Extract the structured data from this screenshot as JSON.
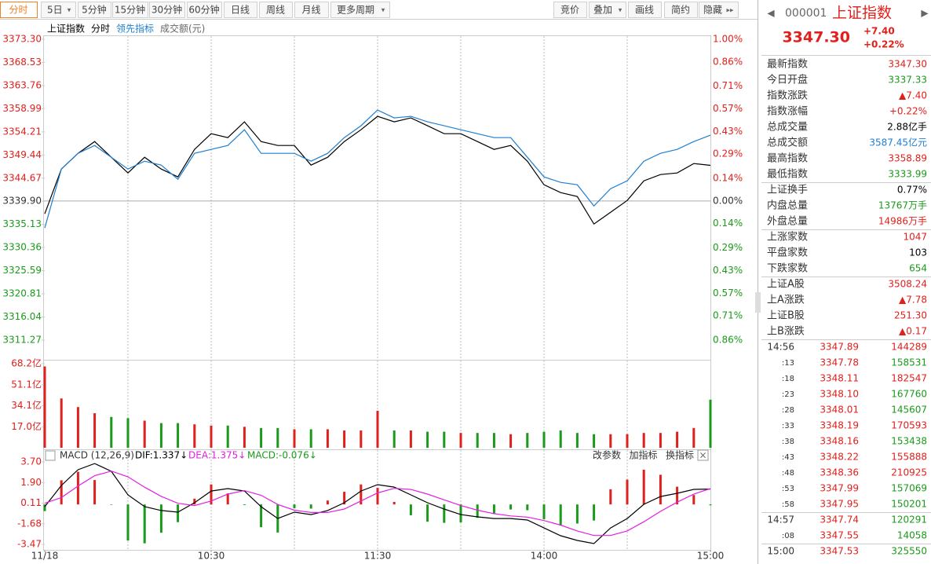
{
  "toolbar": {
    "left": [
      "分时",
      "5日",
      "5分钟",
      "15分钟",
      "30分钟",
      "60分钟",
      "日线",
      "周线",
      "月线",
      "更多周期"
    ],
    "right": [
      "竞价",
      "叠加",
      "画线",
      "简约",
      "隐藏"
    ]
  },
  "chart_data": [
    {
      "type": "line",
      "series_label": "分时",
      "volume_label": "成交额(元)",
      "x": [
        0,
        6,
        12,
        18,
        24,
        30,
        36,
        42,
        48,
        54,
        60,
        66,
        72,
        78,
        84,
        90,
        96,
        102,
        108,
        114,
        120,
        126,
        132,
        138,
        144,
        150,
        156,
        162,
        168,
        174,
        180,
        186,
        192,
        198,
        204,
        210,
        216,
        222,
        228,
        234,
        240
      ],
      "xlim": [
        0,
        240
      ],
      "xgrid": [
        30,
        60,
        90,
        120,
        150,
        180,
        210
      ],
      "series": [
        {
          "name": "上证指数",
          "color": "#000000",
          "values": [
            3337.31,
            3346.55,
            3349.79,
            3352.22,
            3348.98,
            3345.74,
            3348.98,
            3346.55,
            3344.93,
            3350.6,
            3353.84,
            3353.03,
            3356.28,
            3352.22,
            3351.41,
            3351.41,
            3347.36,
            3348.98,
            3352.22,
            3354.65,
            3357.41,
            3356.28,
            3357.09,
            3355.47,
            3353.84,
            3353.84,
            3352.22,
            3350.6,
            3351.41,
            3348.17,
            3343.3,
            3341.68,
            3340.87,
            3335.2,
            3337.63,
            3340.06,
            3344.12,
            3345.41,
            3345.74,
            3347.68,
            3347.3
          ]
        },
        {
          "name": "领先指标",
          "color": "#1e7fd0",
          "values": [
            3334.39,
            3346.55,
            3349.79,
            3351.41,
            3348.98,
            3346.55,
            3348.17,
            3347.36,
            3344.44,
            3349.79,
            3350.6,
            3351.41,
            3354.65,
            3349.79,
            3349.79,
            3349.79,
            3348.17,
            3349.79,
            3353.03,
            3355.47,
            3358.71,
            3357.09,
            3357.41,
            3356.28,
            3355.47,
            3354.65,
            3353.84,
            3353.03,
            3353.03,
            3348.98,
            3344.93,
            3343.79,
            3343.3,
            3338.93,
            3342.49,
            3344.12,
            3348.17,
            3349.79,
            3350.6,
            3352.22,
            3353.52
          ]
        }
      ],
      "ylim": [
        3311.27,
        3373.3
      ],
      "yticks": [
        {
          "value": 3373.3,
          "label": "3373.30"
        },
        3368.53,
        3363.76,
        3358.99,
        3354.21,
        3349.44,
        3344.67,
        {
          "value": 3339.9,
          "label": "3339.90"
        },
        3335.13,
        3330.36,
        3325.59,
        3320.81,
        3316.04,
        3311.27
      ],
      "y2lim": [
        -0.86,
        1.0
      ],
      "y2ticks": [
        {
          "value": 1.0,
          "label": "1.00%"
        },
        {
          "value": 0.86,
          "label": "0.86%"
        },
        {
          "value": 0.71,
          "label": "0.71%"
        },
        {
          "value": 0.57,
          "label": "0.57%"
        },
        {
          "value": 0.43,
          "label": "0.43%"
        },
        {
          "value": 0.29,
          "label": "0.29%"
        },
        {
          "value": 0.14,
          "label": "0.14%"
        },
        {
          "value": 0,
          "label": "0.00%"
        },
        {
          "value": -0.14,
          "label": "0.14%"
        },
        {
          "value": -0.29,
          "label": "0.29%"
        },
        {
          "value": -0.43,
          "label": "0.43%"
        },
        {
          "value": -0.57,
          "label": "0.57%"
        },
        {
          "value": -0.71,
          "label": "0.71%"
        },
        {
          "value": -0.86,
          "label": "0.86%"
        }
      ],
      "up_color": "#e0201c",
      "down_color": "#1a9a1a"
    },
    {
      "type": "bar",
      "x": [
        0,
        6,
        12,
        18,
        24,
        30,
        36,
        42,
        48,
        54,
        60,
        66,
        72,
        78,
        84,
        90,
        96,
        102,
        108,
        114,
        120,
        126,
        132,
        138,
        144,
        150,
        156,
        162,
        168,
        174,
        180,
        186,
        192,
        198,
        204,
        210,
        216,
        222,
        228,
        234,
        240
      ],
      "xlim": [
        0,
        240
      ],
      "values": [
        66,
        40,
        33,
        28,
        25,
        24,
        22,
        20,
        20,
        19,
        18,
        18,
        17,
        16,
        16,
        15,
        15,
        15,
        14,
        14,
        30,
        14,
        14,
        13,
        13,
        12,
        12,
        12,
        11,
        12,
        13,
        14,
        12,
        11,
        11,
        11,
        12,
        12,
        13,
        16,
        39
      ],
      "ylim": [
        0,
        68.2
      ],
      "yticks": [
        {
          "value": 17.0,
          "label": "17.0亿"
        },
        {
          "value": 34.1,
          "label": "34.1亿"
        },
        {
          "value": 51.1,
          "label": "51.1亿"
        },
        {
          "value": 68.2,
          "label": "68.2亿"
        }
      ],
      "up_color": "#e0201c",
      "down_color": "#1a9a1a"
    },
    {
      "type": "macd",
      "title": "MACD (12,26,9)",
      "tools": [
        "改参数",
        "加指标",
        "换指标"
      ],
      "x": [
        0,
        6,
        12,
        18,
        24,
        30,
        36,
        42,
        48,
        54,
        60,
        66,
        72,
        78,
        84,
        90,
        96,
        102,
        108,
        114,
        120,
        126,
        132,
        138,
        144,
        150,
        156,
        162,
        168,
        174,
        180,
        186,
        192,
        198,
        204,
        210,
        216,
        222,
        228,
        234,
        240
      ],
      "xlim": [
        0,
        240
      ],
      "xticks": [
        {
          "value": 0,
          "label": "11/18"
        },
        {
          "value": 60,
          "label": "10:30"
        },
        {
          "value": 120,
          "label": "11:30"
        },
        {
          "value": 180,
          "label": "14:00"
        },
        {
          "value": 240,
          "label": "15:00"
        }
      ],
      "series": [
        {
          "name": "DIF",
          "last_label": "DIF:1.337↓",
          "color": "#000000",
          "values": [
            -0.19,
            1.65,
            3.02,
            3.56,
            2.88,
            0.83,
            -0.19,
            -0.53,
            -0.67,
            0.15,
            1.17,
            1.38,
            1.17,
            -0.19,
            -1.22,
            -0.67,
            -0.88,
            -0.53,
            0.15,
            1.17,
            1.72,
            1.51,
            0.83,
            0.15,
            -0.4,
            -0.88,
            -1.08,
            -1.22,
            -1.22,
            -1.35,
            -2.04,
            -2.72,
            -3.13,
            -3.4,
            -2.04,
            -1.22,
            0.01,
            0.69,
            0.97,
            1.31,
            1.337
          ]
        },
        {
          "name": "DEA",
          "last_label": "DEA:1.375↓",
          "color": "#e020e0",
          "values": [
            0.1,
            0.6,
            1.6,
            2.5,
            2.9,
            2.4,
            1.5,
            0.7,
            0.1,
            -0.1,
            0.3,
            0.9,
            1.2,
            0.8,
            0.0,
            -0.5,
            -0.7,
            -0.7,
            -0.4,
            0.3,
            1.0,
            1.4,
            1.3,
            0.9,
            0.4,
            -0.1,
            -0.5,
            -0.8,
            -1.0,
            -1.1,
            -1.4,
            -1.8,
            -2.3,
            -2.7,
            -2.7,
            -2.3,
            -1.5,
            -0.6,
            0.2,
            0.9,
            1.375
          ]
        },
        {
          "name": "MACD",
          "last_label": "MACD:-0.076↓",
          "color": "#e0201c",
          "down_color": "#1a9a1a",
          "values": [
            -0.58,
            2.1,
            2.84,
            2.12,
            -0.04,
            -3.14,
            -3.38,
            -2.46,
            -1.54,
            0.5,
            1.74,
            0.96,
            -0.06,
            -1.98,
            -2.44,
            -0.34,
            -0.36,
            0.34,
            1.1,
            1.74,
            1.44,
            0.22,
            -0.94,
            -1.5,
            -1.6,
            -1.56,
            -1.16,
            -0.84,
            -0.44,
            -0.5,
            -1.28,
            -1.84,
            -1.66,
            -1.4,
            1.32,
            2.16,
            3.02,
            2.58,
            1.54,
            0.82,
            -0.076
          ]
        }
      ],
      "ylim": [
        -3.47,
        3.7
      ],
      "yticks": [
        {
          "value": 3.7,
          "label": "3.70"
        },
        {
          "value": 1.9,
          "label": "1.90"
        },
        0.11,
        -1.68,
        -3.47
      ]
    }
  ],
  "quote": {
    "code": "000001",
    "name": "上证指数",
    "price": "3347.30",
    "change": "+7.40",
    "pct": "+0.22%"
  },
  "stats": [
    [
      {
        "label": "最新指数",
        "value": "3347.30",
        "color": "#e0201c"
      },
      {
        "label": "今日开盘",
        "value": "3337.33",
        "color": "#1a9a1a"
      },
      {
        "label": "指数涨跌",
        "value": "▲7.40",
        "color": "#e0201c"
      },
      {
        "label": "指数涨幅",
        "value": "+0.22%",
        "color": "#e0201c"
      },
      {
        "label": "总成交量",
        "value": "2.88亿手",
        "color": "#000000"
      },
      {
        "label": "总成交额",
        "value": "3587.45亿元",
        "color": "#1e7fd0"
      },
      {
        "label": "最高指数",
        "value": "3358.89",
        "color": "#e0201c"
      },
      {
        "label": "最低指数",
        "value": "3333.99",
        "color": "#1a9a1a"
      }
    ],
    [
      {
        "label": "上证换手",
        "value": "0.77%",
        "color": "#000000"
      },
      {
        "label": "内盘总量",
        "value": "13767万手",
        "color": "#1a9a1a"
      },
      {
        "label": "外盘总量",
        "value": "14986万手",
        "color": "#e0201c"
      }
    ],
    [
      {
        "label": "上涨家数",
        "value": "1047",
        "color": "#e0201c"
      },
      {
        "label": "平盘家数",
        "value": "103",
        "color": "#000000"
      },
      {
        "label": "下跌家数",
        "value": "654",
        "color": "#1a9a1a"
      }
    ],
    [
      {
        "label": "上证A股",
        "value": "3508.24",
        "color": "#e0201c"
      },
      {
        "label": "上A涨跌",
        "value": "▲7.78",
        "color": "#e0201c"
      },
      {
        "label": "上证B股",
        "value": "251.30",
        "color": "#e0201c"
      },
      {
        "label": "上B涨跌",
        "value": "▲0.17",
        "color": "#e0201c"
      }
    ]
  ],
  "trades": [
    [
      {
        "time": "14:56",
        "price": "3347.89",
        "volume": "144289",
        "color": "#e0201c"
      },
      {
        "time": ":13",
        "price": "3347.78",
        "volume": "158531",
        "color": "#1a9a1a"
      },
      {
        "time": ":18",
        "price": "3348.11",
        "volume": "182547",
        "color": "#e0201c"
      },
      {
        "time": ":23",
        "price": "3348.10",
        "volume": "167760",
        "color": "#1a9a1a"
      },
      {
        "time": ":28",
        "price": "3348.01",
        "volume": "145607",
        "color": "#1a9a1a"
      },
      {
        "time": ":33",
        "price": "3348.19",
        "volume": "170593",
        "color": "#e0201c"
      },
      {
        "time": ":38",
        "price": "3348.16",
        "volume": "153438",
        "color": "#1a9a1a"
      },
      {
        "time": ":43",
        "price": "3348.22",
        "volume": "155888",
        "color": "#e0201c"
      },
      {
        "time": ":48",
        "price": "3348.36",
        "volume": "210925",
        "color": "#e0201c"
      },
      {
        "time": ":53",
        "price": "3347.99",
        "volume": "157069",
        "color": "#1a9a1a"
      },
      {
        "time": ":58",
        "price": "3347.95",
        "volume": "150201",
        "color": "#1a9a1a"
      }
    ],
    [
      {
        "time": "14:57",
        "price": "3347.74",
        "volume": "120291",
        "color": "#1a9a1a"
      },
      {
        "time": ":08",
        "price": "3347.55",
        "volume": "14058",
        "color": "#1a9a1a"
      }
    ],
    [
      {
        "time": "15:00",
        "price": "3347.53",
        "volume": "325550",
        "color": "#1a9a1a"
      }
    ]
  ]
}
